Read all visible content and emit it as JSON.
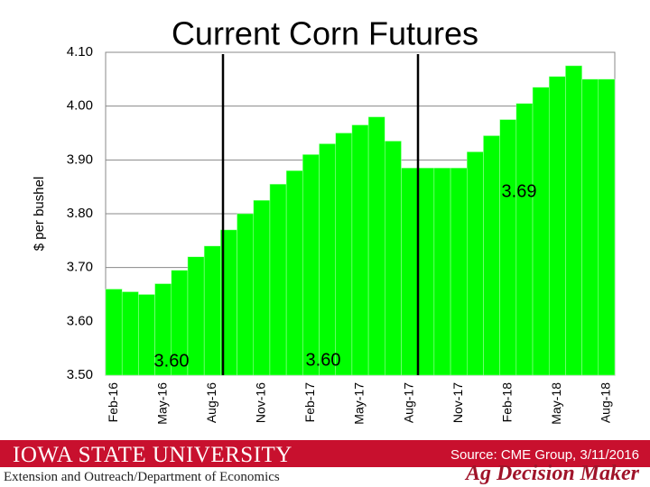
{
  "chart_data": {
    "type": "bar",
    "title": "Current Corn Futures",
    "y_label": "$ per bushel",
    "categories": [
      "Feb-16",
      null,
      null,
      "May-16",
      null,
      null,
      "Aug-16",
      null,
      null,
      "Nov-16",
      null,
      null,
      "Feb-17",
      null,
      null,
      "May-17",
      null,
      null,
      "Aug-17",
      null,
      null,
      "Nov-17",
      null,
      null,
      "Feb-18",
      null,
      null,
      "May-18",
      null,
      null,
      "Aug-18"
    ],
    "values": [
      3.66,
      3.655,
      3.65,
      3.67,
      3.695,
      3.72,
      3.74,
      3.77,
      3.8,
      3.825,
      3.855,
      3.88,
      3.91,
      3.93,
      3.95,
      3.965,
      3.98,
      3.935,
      3.885,
      3.885,
      3.885,
      3.885,
      3.915,
      3.945,
      3.975,
      4.005,
      4.035,
      4.055,
      4.075,
      4.05,
      4.05
    ],
    "color": "#00ff00",
    "ylim": [
      3.5,
      4.1
    ],
    "yticks": [
      {
        "value": 3.5,
        "label": "3.50"
      },
      {
        "value": 3.6,
        "label": "3.60"
      },
      {
        "value": 3.7,
        "label": "3.70"
      },
      {
        "value": 3.8,
        "label": "3.80"
      },
      {
        "value": 3.9,
        "label": "3.90"
      },
      {
        "value": 4.0,
        "label": "4.00"
      },
      {
        "value": 4.1,
        "label": "4.10"
      }
    ],
    "grid": true,
    "annotations": [
      "3.60",
      "3.60",
      "3.69"
    ]
  },
  "footer": {
    "university": "IOWA STATE UNIVERSITY",
    "department": "Extension and Outreach/Department of Economics",
    "source": "Source: CME Group, 3/11/2016",
    "brand": "Ag Decision Maker"
  }
}
